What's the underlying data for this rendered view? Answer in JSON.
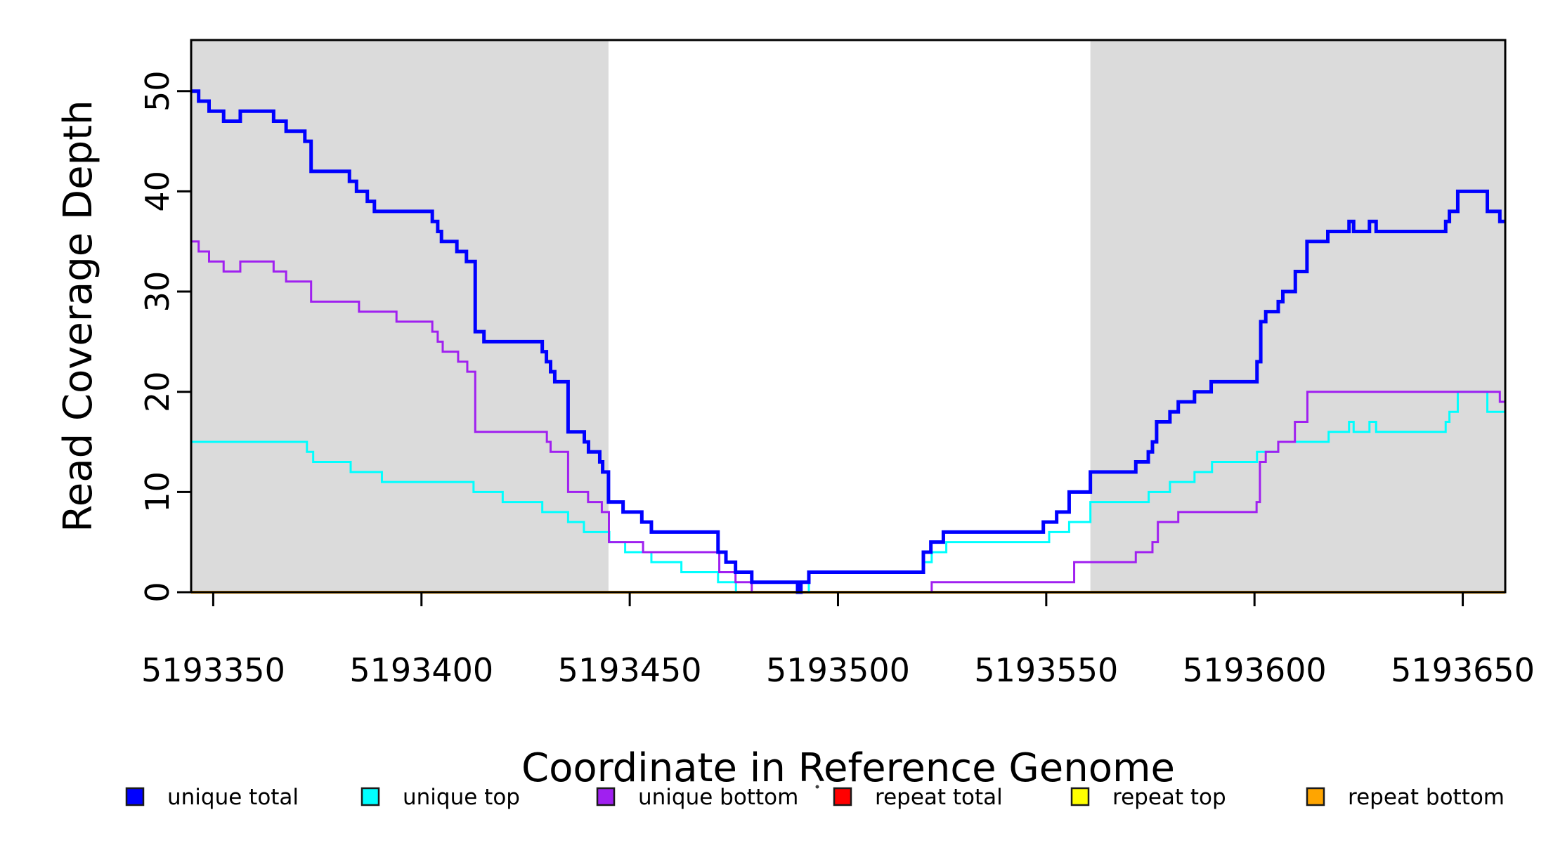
{
  "chart_data": {
    "type": "line",
    "subtype": "step-coverage",
    "title": "",
    "xlabel": "Coordinate in Reference Genome",
    "ylabel": "Read Coverage Depth",
    "xlim": [
      5193344.7,
      5193660.2
    ],
    "ylim": [
      0,
      55.1
    ],
    "x_ticks": [
      5193350,
      5193400,
      5193450,
      5193500,
      5193550,
      5193600,
      5193650
    ],
    "y_ticks": [
      0,
      10,
      20,
      30,
      40,
      50
    ],
    "grid": false,
    "legend_position": "bottom",
    "plot_background": "#ffffff",
    "frame_color": "#000000",
    "shaded_bands": [
      {
        "x0": 5193344.7,
        "x1": 5193444.9,
        "color": "#dbdbdb"
      },
      {
        "x0": 5193560.6,
        "x1": 5193660.2,
        "color": "#dbdbdb"
      }
    ],
    "series": [
      {
        "name": "unique total",
        "color": "#0000ff",
        "line_width": 5,
        "z": 6,
        "points": [
          [
            5193344.7,
            50
          ],
          [
            5193346.5,
            49
          ],
          [
            5193349,
            48
          ],
          [
            5193352.5,
            47
          ],
          [
            5193356.5,
            48
          ],
          [
            5193364.5,
            47
          ],
          [
            5193367.5,
            46
          ],
          [
            5193372,
            45
          ],
          [
            5193373.5,
            42
          ],
          [
            5193382.7,
            41
          ],
          [
            5193384.4,
            40
          ],
          [
            5193387,
            39
          ],
          [
            5193388.7,
            38
          ],
          [
            5193402.6,
            37
          ],
          [
            5193403.9,
            36
          ],
          [
            5193404.8,
            35
          ],
          [
            5193408.5,
            34
          ],
          [
            5193410.8,
            33
          ],
          [
            5193412.9,
            26
          ],
          [
            5193415,
            25
          ],
          [
            5193429,
            24
          ],
          [
            5193430,
            23
          ],
          [
            5193431,
            22
          ],
          [
            5193432,
            21
          ],
          [
            5193435.2,
            16
          ],
          [
            5193439.1,
            15
          ],
          [
            5193440.1,
            14
          ],
          [
            5193442.8,
            13
          ],
          [
            5193443.5,
            12
          ],
          [
            5193444.9,
            9
          ],
          [
            5193448.4,
            8
          ],
          [
            5193452.9,
            7
          ],
          [
            5193455.2,
            6
          ],
          [
            5193471.2,
            4
          ],
          [
            5193473.1,
            3
          ],
          [
            5193475.4,
            2
          ],
          [
            5193479.3,
            1
          ],
          [
            5193490.3,
            0
          ],
          [
            5193491.1,
            1
          ],
          [
            5193493,
            2
          ],
          [
            5193520.5,
            4
          ],
          [
            5193522.3,
            5
          ],
          [
            5193525.3,
            6
          ],
          [
            5193549.3,
            7
          ],
          [
            5193552.5,
            8
          ],
          [
            5193555.5,
            10
          ],
          [
            5193560.6,
            12
          ],
          [
            5193571.5,
            13
          ],
          [
            5193574.5,
            14
          ],
          [
            5193575.5,
            15
          ],
          [
            5193576.5,
            17
          ],
          [
            5193579.7,
            18
          ],
          [
            5193581.7,
            19
          ],
          [
            5193585.6,
            20
          ],
          [
            5193589.6,
            21
          ],
          [
            5193600.6,
            23
          ],
          [
            5193601.5,
            27
          ],
          [
            5193602.7,
            28
          ],
          [
            5193605.7,
            29
          ],
          [
            5193606.8,
            30
          ],
          [
            5193609.8,
            32
          ],
          [
            5193612.6,
            35
          ],
          [
            5193617.6,
            36
          ],
          [
            5193622.7,
            37
          ],
          [
            5193623.8,
            36
          ],
          [
            5193627.6,
            37
          ],
          [
            5193629.2,
            36
          ],
          [
            5193645.9,
            37
          ],
          [
            5193646.8,
            38
          ],
          [
            5193648.8,
            40
          ],
          [
            5193655.9,
            38
          ],
          [
            5193658.9,
            37
          ]
        ]
      },
      {
        "name": "unique top",
        "color": "#00ffff",
        "line_width": 3,
        "z": 4,
        "points": [
          [
            5193344.7,
            15
          ],
          [
            5193372.5,
            14
          ],
          [
            5193374,
            13
          ],
          [
            5193383,
            12
          ],
          [
            5193390.5,
            11
          ],
          [
            5193412.5,
            10
          ],
          [
            5193419.5,
            9
          ],
          [
            5193429,
            8
          ],
          [
            5193435.2,
            7
          ],
          [
            5193439,
            6
          ],
          [
            5193445.1,
            5
          ],
          [
            5193448.9,
            4
          ],
          [
            5193455.2,
            3
          ],
          [
            5193462.4,
            2
          ],
          [
            5193471.2,
            1
          ],
          [
            5193475.5,
            0
          ],
          [
            5193493,
            2
          ],
          [
            5193520.5,
            3
          ],
          [
            5193522.5,
            4
          ],
          [
            5193526,
            5
          ],
          [
            5193550.7,
            6
          ],
          [
            5193555.5,
            7
          ],
          [
            5193560.6,
            9
          ],
          [
            5193574.6,
            10
          ],
          [
            5193579.7,
            11
          ],
          [
            5193585.6,
            12
          ],
          [
            5193589.8,
            13
          ],
          [
            5193600.6,
            14
          ],
          [
            5193605.7,
            15
          ],
          [
            5193617.8,
            16
          ],
          [
            5193622.7,
            17
          ],
          [
            5193623.8,
            16
          ],
          [
            5193627.6,
            17
          ],
          [
            5193629.2,
            16
          ],
          [
            5193645.9,
            17
          ],
          [
            5193646.8,
            18
          ],
          [
            5193648.8,
            20
          ],
          [
            5193655.9,
            18
          ]
        ]
      },
      {
        "name": "unique bottom",
        "color": "#a020f0",
        "line_width": 3,
        "z": 5,
        "points": [
          [
            5193344.7,
            35
          ],
          [
            5193346.5,
            34
          ],
          [
            5193349,
            33
          ],
          [
            5193352.5,
            32
          ],
          [
            5193356.5,
            33
          ],
          [
            5193364.5,
            32
          ],
          [
            5193367.5,
            31
          ],
          [
            5193373.5,
            29
          ],
          [
            5193385,
            28
          ],
          [
            5193394,
            27
          ],
          [
            5193402.6,
            26
          ],
          [
            5193403.9,
            25
          ],
          [
            5193405.1,
            24
          ],
          [
            5193408.8,
            23
          ],
          [
            5193411,
            22
          ],
          [
            5193412.9,
            16
          ],
          [
            5193430.1,
            15
          ],
          [
            5193431,
            14
          ],
          [
            5193435.2,
            10
          ],
          [
            5193440,
            9
          ],
          [
            5193443.3,
            8
          ],
          [
            5193445,
            5
          ],
          [
            5193453.2,
            4
          ],
          [
            5193471.5,
            2
          ],
          [
            5193475.4,
            1
          ],
          [
            5193479.3,
            0
          ],
          [
            5193522.5,
            1
          ],
          [
            5193556.7,
            3
          ],
          [
            5193571.5,
            4
          ],
          [
            5193575.5,
            5
          ],
          [
            5193576.8,
            7
          ],
          [
            5193581.7,
            8
          ],
          [
            5193600.5,
            9
          ],
          [
            5193601.3,
            13
          ],
          [
            5193602.7,
            14
          ],
          [
            5193605.7,
            15
          ],
          [
            5193609.7,
            17
          ],
          [
            5193612.7,
            20
          ],
          [
            5193658.9,
            19
          ]
        ]
      },
      {
        "name": "repeat total",
        "color": "#ff0000",
        "line_width": 3,
        "z": 1,
        "points": [
          [
            5193344.7,
            0
          ]
        ]
      },
      {
        "name": "repeat top",
        "color": "#ffff00",
        "line_width": 3,
        "z": 2,
        "points": [
          [
            5193344.7,
            0
          ]
        ]
      },
      {
        "name": "repeat bottom",
        "color": "#ffa500",
        "line_width": 4,
        "z": 3,
        "points": [
          [
            5193344.7,
            0
          ]
        ]
      }
    ],
    "legend": [
      {
        "label": "unique total",
        "color": "#0000ff"
      },
      {
        "label": "unique top",
        "color": "#00ffff"
      },
      {
        "label": "unique bottom",
        "color": "#a020f0"
      },
      {
        "label": "repeat total",
        "color": "#ff0000"
      },
      {
        "label": "repeat top",
        "color": "#ffff00"
      },
      {
        "label": "repeat bottom",
        "color": "#ffa500"
      }
    ],
    "annotations": {
      "stray_dot": {
        "x": 1163,
        "y": 1120
      }
    }
  }
}
